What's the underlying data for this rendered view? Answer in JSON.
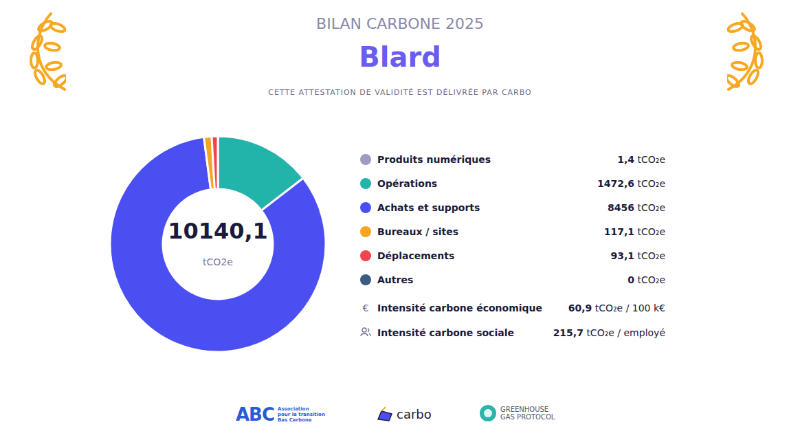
{
  "header": {
    "title": "BILAN CARBONE 2025",
    "company": "Blard",
    "subtitle": "CETTE ATTESTATION DE VALIDITÉ EST DÉLIVRÉE PAR CARBO"
  },
  "chart_data": {
    "type": "pie",
    "categories": [
      "Produits numériques",
      "Opérations",
      "Achats et supports",
      "Bureaux / sites",
      "Déplacements",
      "Autres"
    ],
    "values": [
      1.4,
      1472.6,
      8456,
      117.1,
      93.1,
      0
    ],
    "value_labels": [
      "1,4",
      "1472,6",
      "8456",
      "117,1",
      "93,1",
      "0"
    ],
    "colors": [
      "#9d9cc2",
      "#22b3aa",
      "#4b4ff2",
      "#f5a524",
      "#f2444f",
      "#3b5a84"
    ],
    "unit": "tCO₂e",
    "total": 10140.1,
    "total_label": "10140,1",
    "total_unit": "tCO2e",
    "legend": "right"
  },
  "intensities": [
    {
      "label": "Intensité carbone économique",
      "value": 60.9,
      "value_label": "60,9",
      "unit": "tCO₂e / 100 k€",
      "symbol": "€"
    },
    {
      "label": "Intensité carbone sociale",
      "value": 215.7,
      "value_label": "215,7",
      "unit": "tCO₂e / employé"
    }
  ],
  "footer": {
    "abc": {
      "logo": "ABC",
      "lines": [
        "Association",
        "pour la transition",
        "Bas Carbone"
      ]
    },
    "carbo": "carbo",
    "ghg": [
      "GREENHOUSE",
      "GAS PROTOCOL"
    ]
  }
}
